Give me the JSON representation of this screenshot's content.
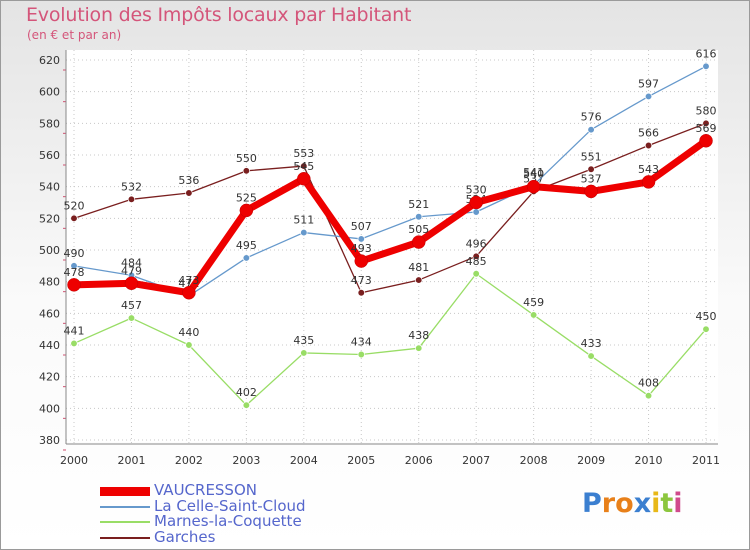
{
  "header": {
    "title": "Evolution des Impôts locaux par Habitant",
    "subtitle": "(en € et par an)"
  },
  "brand": {
    "letters": [
      "P",
      "r",
      "o",
      "x",
      "i",
      "t",
      "i"
    ],
    "colors": [
      "#3b7fd0",
      "#e8801a",
      "#e8801a",
      "#3b7fd0",
      "#e8b818",
      "#8cc63e",
      "#d04a8c"
    ]
  },
  "chart_data": {
    "type": "line",
    "title": "Evolution des Impôts locaux par Habitant",
    "subtitle": "(en € et par an)",
    "xlabel": "",
    "ylabel": "",
    "x": [
      "2000",
      "2001",
      "2002",
      "2003",
      "2004",
      "2005",
      "2006",
      "2007",
      "2008",
      "2009",
      "2010",
      "2011"
    ],
    "ylim": [
      380,
      620
    ],
    "yticks": [
      380,
      400,
      420,
      440,
      460,
      480,
      500,
      520,
      540,
      560,
      580,
      600,
      620
    ],
    "grid": true,
    "legend_position": "bottom-left",
    "series": [
      {
        "name": "Garches",
        "color": "#7a1f1f",
        "values": [
          520,
          532,
          536,
          550,
          553,
          473,
          481,
          496,
          537,
          551,
          566,
          580
        ]
      },
      {
        "name": "Marnes-la-Coquette",
        "color": "#99dd66",
        "values": [
          441,
          457,
          440,
          402,
          435,
          434,
          438,
          485,
          459,
          433,
          408,
          450
        ]
      },
      {
        "name": "La Celle-Saint-Cloud",
        "color": "#6699cc",
        "values": [
          490,
          484,
          471,
          495,
          511,
          507,
          521,
          524,
          541,
          576,
          597,
          616
        ]
      },
      {
        "name": "VAUCRESSON",
        "color": "#ee0000",
        "values": [
          478,
          479,
          473,
          525,
          545,
          493,
          505,
          530,
          540,
          537,
          543,
          569
        ]
      }
    ],
    "legend": [
      "VAUCRESSON",
      "La Celle-Saint-Cloud",
      "Marnes-la-Coquette",
      "Garches"
    ]
  }
}
